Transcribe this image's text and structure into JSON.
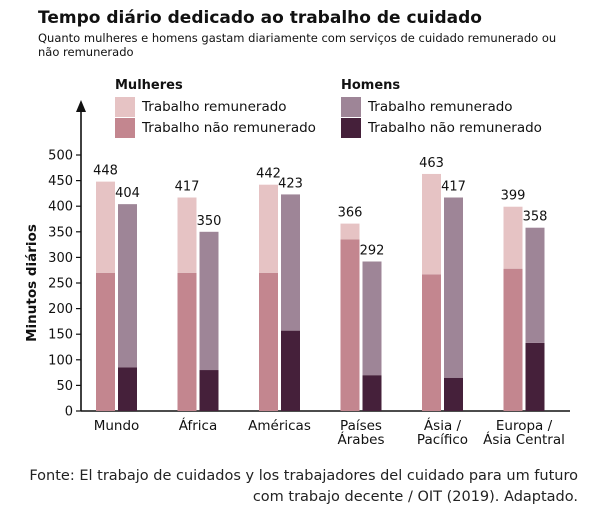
{
  "title": "Tempo diário dedicado ao trabalho de cuidado",
  "subtitle": "Quanto mulheres e homens gastam diariamente com serviços de cuidado remunerado ou não remunerado",
  "legend": {
    "women": {
      "heading": "Mulheres",
      "paid_label": "Trabalho remunerado",
      "unpaid_label": "Trabalho não remunerado"
    },
    "men": {
      "heading": "Homens",
      "paid_label": "Trabalho remunerado",
      "unpaid_label": "Trabalho não remunerado"
    }
  },
  "colors": {
    "women_paid": "#e6c3c4",
    "women_unpaid": "#c3868f",
    "men_paid": "#9e8597",
    "men_unpaid": "#45203a"
  },
  "source": "Fonte: El trabajo de cuidados y los trabajadores del cuidado para um futuro com trabajo decente / OIT (2019). Adaptado.",
  "chart_data": {
    "type": "bar",
    "stacked": true,
    "ylabel": "Minutos diários",
    "ylim": [
      0,
      500
    ],
    "yticks": [
      0,
      50,
      100,
      150,
      200,
      250,
      300,
      350,
      400,
      450,
      500
    ],
    "categories": [
      [
        "Mundo"
      ],
      [
        "África"
      ],
      [
        "Américas"
      ],
      [
        "Países",
        "Árabes"
      ],
      [
        "Ásia /",
        "Pacífico"
      ],
      [
        "Europa /",
        "Ásia Central"
      ]
    ],
    "series": [
      {
        "name": "Mulheres – Trabalho não remunerado",
        "group": "women",
        "part": "unpaid",
        "values": [
          270,
          270,
          270,
          335,
          267,
          278
        ]
      },
      {
        "name": "Mulheres – Trabalho remunerado",
        "group": "women",
        "part": "paid",
        "values": [
          178,
          147,
          172,
          31,
          196,
          121
        ]
      },
      {
        "name": "Homens – Trabalho não remunerado",
        "group": "men",
        "part": "unpaid",
        "values": [
          85,
          80,
          157,
          70,
          65,
          133
        ]
      },
      {
        "name": "Homens – Trabalho remunerado",
        "group": "men",
        "part": "paid",
        "values": [
          319,
          270,
          266,
          222,
          352,
          225
        ]
      }
    ],
    "totals": {
      "women": [
        448,
        417,
        442,
        366,
        463,
        399
      ],
      "men": [
        404,
        350,
        423,
        292,
        417,
        358
      ]
    }
  }
}
